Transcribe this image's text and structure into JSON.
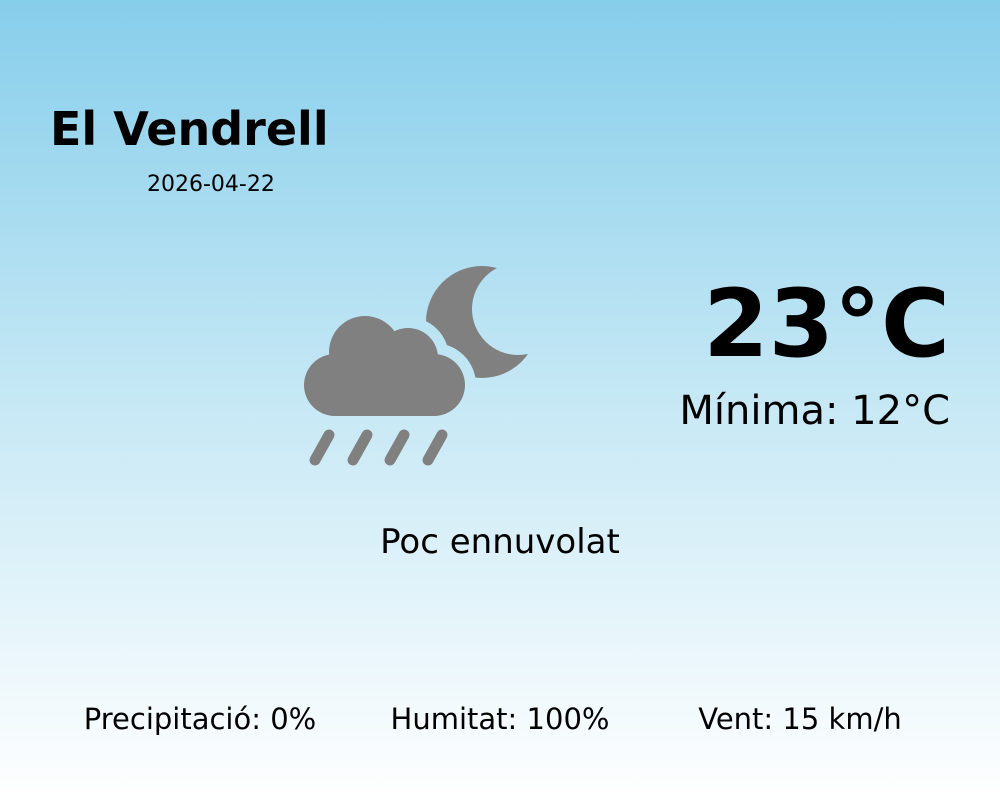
{
  "location": {
    "city": "El Vendrell",
    "date": "2026-04-22"
  },
  "current": {
    "temperature": "23°C",
    "minimum": "Mínima: 12°C",
    "condition": "Poc ennuvolat",
    "icon": "cloud-rain-moon-icon",
    "icon_color": "#808080"
  },
  "stats": {
    "precipitation": "Precipitació: 0%",
    "humidity": "Humitat: 100%",
    "wind": "Vent: 15 km/h"
  },
  "colors": {
    "background_top": "#87ceeb",
    "background_bottom": "#ffffff"
  }
}
